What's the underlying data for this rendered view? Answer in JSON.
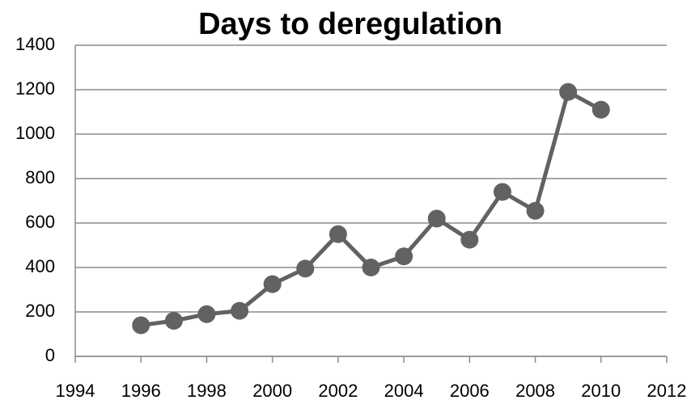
{
  "chart_data": {
    "type": "line",
    "title": "Days to deregulation",
    "x": [
      1996,
      1997,
      1998,
      1999,
      2000,
      2001,
      2002,
      2003,
      2004,
      2005,
      2006,
      2007,
      2008,
      2009,
      2010
    ],
    "values": [
      140,
      160,
      190,
      205,
      325,
      395,
      550,
      400,
      450,
      620,
      525,
      740,
      655,
      1190,
      1110
    ],
    "color": "#626262",
    "xlim": [
      1994,
      2012
    ],
    "xticks": [
      1994,
      1996,
      1998,
      2000,
      2002,
      2004,
      2006,
      2008,
      2010,
      2012
    ],
    "ylim": [
      0,
      1400
    ],
    "yticks": [
      0,
      200,
      400,
      600,
      800,
      1000,
      1200,
      1400
    ],
    "grid": true
  }
}
